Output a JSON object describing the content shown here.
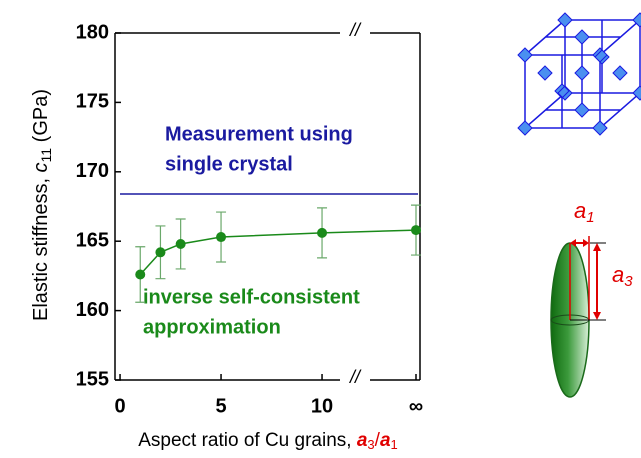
{
  "chart_data": {
    "type": "line",
    "x": [
      1,
      2,
      3,
      5,
      10,
      "∞"
    ],
    "values": [
      162.6,
      164.2,
      164.8,
      165.3,
      165.6,
      165.8
    ],
    "errors": [
      2.0,
      1.9,
      1.8,
      1.8,
      1.8,
      1.8
    ],
    "color": "#1a8a1a",
    "error_color": "#6aa86a",
    "xlim": [
      -0.25,
      14.85
    ],
    "xticks": [
      0,
      5,
      10,
      "∞"
    ],
    "ylim": [
      155,
      180
    ],
    "yticks": [
      155,
      160,
      165,
      170,
      175,
      180
    ],
    "reference_line": {
      "value": 168.4,
      "color": "#1a1aa0",
      "label": [
        "Measurement using",
        "single crystal"
      ]
    },
    "annotation": {
      "text": [
        "inverse self-consistent",
        "approximation"
      ],
      "color": "#1a8a1a"
    },
    "y_label": {
      "text": "Elastic stiffness, ",
      "var": "c",
      "sub": "11",
      "unit": " (GPa)"
    },
    "x_label": {
      "text": "Aspect ratio of Cu grains, ",
      "num": {
        "var": "a",
        "sub": "3"
      },
      "slash": "/",
      "den": {
        "var": "a",
        "sub": "1"
      },
      "color": "#e00000"
    }
  },
  "diagram": {
    "a1": {
      "var": "a",
      "sub": "1"
    },
    "a3": {
      "var": "a",
      "sub": "3"
    }
  }
}
